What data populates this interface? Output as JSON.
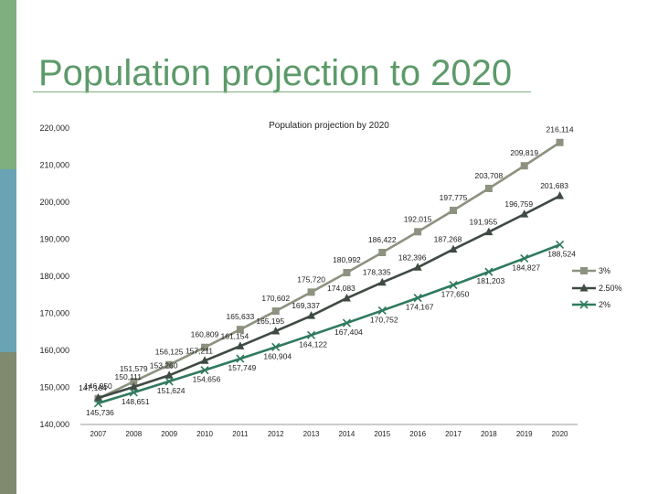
{
  "slide": {
    "title": "Population projection to 2020"
  },
  "colors": {
    "accent": "#7fae7f",
    "series_3pct": "#8c927f",
    "series_2_5pct": "#3f4a43",
    "series_2pct": "#2f7a5e"
  },
  "chart_data": {
    "type": "line",
    "title": "Population projection by 2020",
    "xlabel": "",
    "ylabel": "",
    "ylim": [
      140000,
      220000
    ],
    "yticks": [
      140000,
      150000,
      160000,
      170000,
      180000,
      190000,
      200000,
      210000,
      220000
    ],
    "ytick_labels": [
      "140,000",
      "150,000",
      "160,000",
      "170,000",
      "180,000",
      "190,000",
      "200,000",
      "210,000",
      "220,000"
    ],
    "categories": [
      "2007",
      "2008",
      "2009",
      "2010",
      "2011",
      "2012",
      "2013",
      "2014",
      "2015",
      "2016",
      "2017",
      "2018",
      "2019",
      "2020"
    ],
    "legend_position": "right",
    "series": [
      {
        "name": "3%",
        "marker": "square",
        "values": [
          146950,
          151579,
          156125,
          160809,
          165633,
          170602,
          175720,
          180992,
          186422,
          192015,
          197775,
          203708,
          209819,
          216114
        ],
        "labels": [
          "146,950",
          "151,579",
          "156,125",
          "160,809",
          "165,633",
          "170,602",
          "175,720",
          "180,992",
          "186,422",
          "192,015",
          "197,775",
          "203,708",
          "209,819",
          "216,114"
        ]
      },
      {
        "name": "2.50%",
        "marker": "triangle",
        "values": [
          147164,
          150111,
          153260,
          157211,
          161154,
          165195,
          169337,
          174083,
          178335,
          182396,
          187268,
          191955,
          196759,
          201683
        ],
        "labels": [
          "147,164",
          "150,111",
          "153,260",
          "157,211",
          "161,154",
          "165,195",
          "169,337",
          "174,083",
          "178,335",
          "182,396",
          "187,268",
          "191,955",
          "196,759",
          "201,683"
        ]
      },
      {
        "name": "2%",
        "marker": "x",
        "values": [
          145736,
          148651,
          151624,
          154656,
          157749,
          160904,
          164122,
          167404,
          170752,
          174167,
          177650,
          181203,
          184827,
          188524
        ],
        "labels": [
          "145,736",
          "148,651",
          "151,624",
          "154,656",
          "157,749",
          "160,904",
          "164,122",
          "167,404",
          "170,752",
          "174,167",
          "177,650",
          "181,203",
          "184,827",
          "188,524"
        ]
      }
    ]
  }
}
